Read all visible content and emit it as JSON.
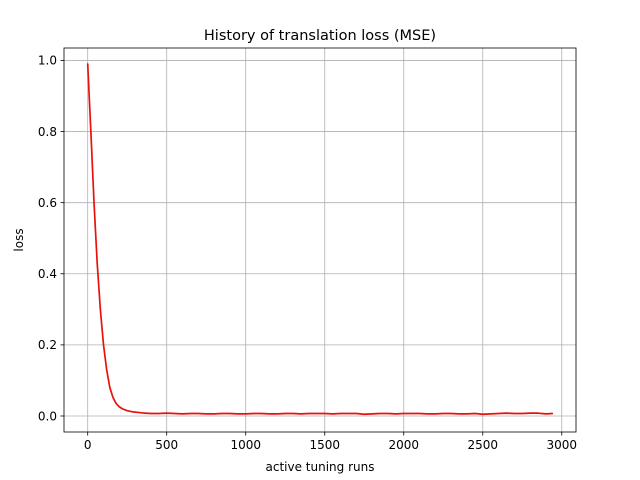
{
  "chart_data": {
    "type": "line",
    "title": "History of translation loss (MSE)",
    "xlabel": "active tuning runs",
    "ylabel": "loss",
    "xlim": [
      -150,
      3090
    ],
    "ylim": [
      -0.045,
      1.035
    ],
    "xticks": [
      0,
      500,
      1000,
      1500,
      2000,
      2500,
      3000
    ],
    "yticks": [
      0.0,
      0.2,
      0.4,
      0.6,
      0.8,
      1.0
    ],
    "xtick_labels": [
      "0",
      "500",
      "1000",
      "1500",
      "2000",
      "2500",
      "3000"
    ],
    "ytick_labels": [
      "0.0",
      "0.2",
      "0.4",
      "0.6",
      "0.8",
      "1.0"
    ],
    "grid": true,
    "series": [
      {
        "color": "#e8120c",
        "x": [
          0,
          20,
          40,
          60,
          80,
          100,
          120,
          140,
          160,
          180,
          200,
          220,
          250,
          280,
          320,
          360,
          400,
          450,
          500,
          550,
          600,
          650,
          700,
          750,
          800,
          850,
          900,
          950,
          1000,
          1050,
          1100,
          1150,
          1200,
          1250,
          1300,
          1350,
          1400,
          1450,
          1500,
          1550,
          1600,
          1650,
          1700,
          1750,
          1800,
          1850,
          1900,
          1950,
          2000,
          2050,
          2100,
          2150,
          2200,
          2250,
          2300,
          2350,
          2400,
          2450,
          2500,
          2550,
          2600,
          2650,
          2700,
          2750,
          2800,
          2850,
          2900,
          2940
        ],
        "y": [
          0.99,
          0.8,
          0.6,
          0.43,
          0.3,
          0.2,
          0.13,
          0.08,
          0.052,
          0.035,
          0.026,
          0.02,
          0.015,
          0.012,
          0.01,
          0.008,
          0.007,
          0.007,
          0.008,
          0.007,
          0.006,
          0.007,
          0.007,
          0.006,
          0.006,
          0.007,
          0.007,
          0.006,
          0.006,
          0.007,
          0.007,
          0.006,
          0.006,
          0.007,
          0.007,
          0.006,
          0.007,
          0.007,
          0.007,
          0.006,
          0.007,
          0.007,
          0.007,
          0.005,
          0.006,
          0.007,
          0.007,
          0.006,
          0.007,
          0.007,
          0.007,
          0.006,
          0.006,
          0.007,
          0.007,
          0.006,
          0.006,
          0.007,
          0.005,
          0.006,
          0.007,
          0.008,
          0.007,
          0.007,
          0.008,
          0.008,
          0.006,
          0.007
        ]
      }
    ]
  }
}
